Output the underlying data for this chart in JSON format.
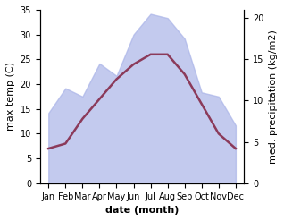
{
  "months": [
    "Jan",
    "Feb",
    "Mar",
    "Apr",
    "May",
    "Jun",
    "Jul",
    "Aug",
    "Sep",
    "Oct",
    "Nov",
    "Dec"
  ],
  "max_temp": [
    7,
    8,
    13,
    17,
    21,
    24,
    26,
    26,
    22,
    16,
    10,
    7
  ],
  "precipitation": [
    8.5,
    11.5,
    10.5,
    14.5,
    13,
    18,
    20.5,
    20,
    17.5,
    11,
    10.5,
    7
  ],
  "temp_ylim": [
    0,
    35
  ],
  "precip_ylim": [
    0,
    21
  ],
  "temp_yticks": [
    0,
    5,
    10,
    15,
    20,
    25,
    30,
    35
  ],
  "precip_yticks": [
    0,
    5,
    10,
    15,
    20
  ],
  "xlabel": "date (month)",
  "ylabel_left": "max temp (C)",
  "ylabel_right": "med. precipitation (kg/m2)",
  "fill_color": "#aab4e8",
  "fill_alpha": 0.7,
  "line_color": "#8b3a5a",
  "line_width": 1.8,
  "bg_color": "#ffffff",
  "label_fontsize": 8,
  "tick_fontsize": 7
}
